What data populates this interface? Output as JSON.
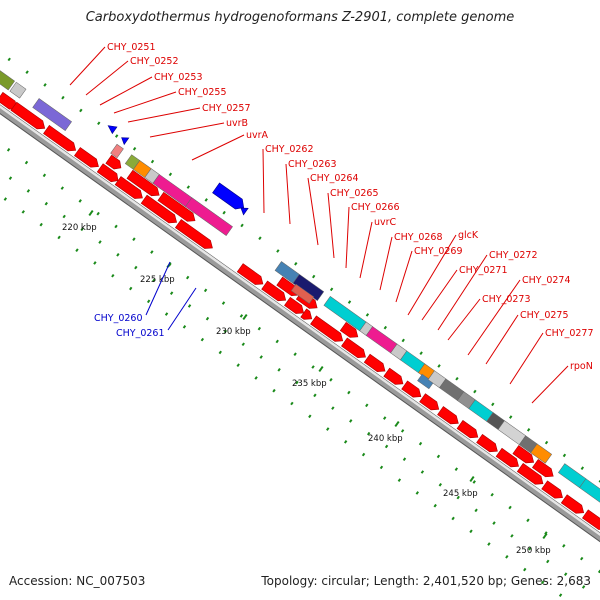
{
  "title": "Carboxydothermus hydrogenoformans Z-2901, complete genome",
  "footer": {
    "accession": "Accession: NC_007503",
    "summary": "Topology: circular; Length: 2,401,520 bp; Genes: 2,683"
  },
  "colors": {
    "cds": "#ff0000",
    "cds_minus": "#0000ff",
    "label_red": "#dd0000",
    "label_blue": "#0000cc",
    "ticks": "#1a8a1a",
    "backbone": "#888888"
  },
  "ticks": [
    {
      "label": "220 kbp"
    },
    {
      "label": "225 kbp"
    },
    {
      "label": "230 kbp"
    },
    {
      "label": "235 kbp"
    },
    {
      "label": "240 kbp"
    },
    {
      "label": "245 kbp"
    },
    {
      "label": "250 kbp"
    }
  ],
  "gene_labels_red": [
    {
      "text": "CHY_0251"
    },
    {
      "text": "CHY_0252"
    },
    {
      "text": "CHY_0253"
    },
    {
      "text": "CHY_0255"
    },
    {
      "text": "CHY_0257"
    },
    {
      "text": "uvrB"
    },
    {
      "text": "uvrA"
    },
    {
      "text": "CHY_0262"
    },
    {
      "text": "CHY_0263"
    },
    {
      "text": "CHY_0264"
    },
    {
      "text": "CHY_0265"
    },
    {
      "text": "CHY_0266"
    },
    {
      "text": "uvrC"
    },
    {
      "text": "CHY_0268"
    },
    {
      "text": "glcK"
    },
    {
      "text": "CHY_0269"
    },
    {
      "text": "CHY_0272"
    },
    {
      "text": "CHY_0271"
    },
    {
      "text": "CHY_0274"
    },
    {
      "text": "CHY_0273"
    },
    {
      "text": "CHY_0275"
    },
    {
      "text": "CHY_0277"
    },
    {
      "text": "rpoN"
    }
  ],
  "gene_labels_blue": [
    {
      "text": "CHY_0260"
    },
    {
      "text": "CHY_0261"
    }
  ]
}
